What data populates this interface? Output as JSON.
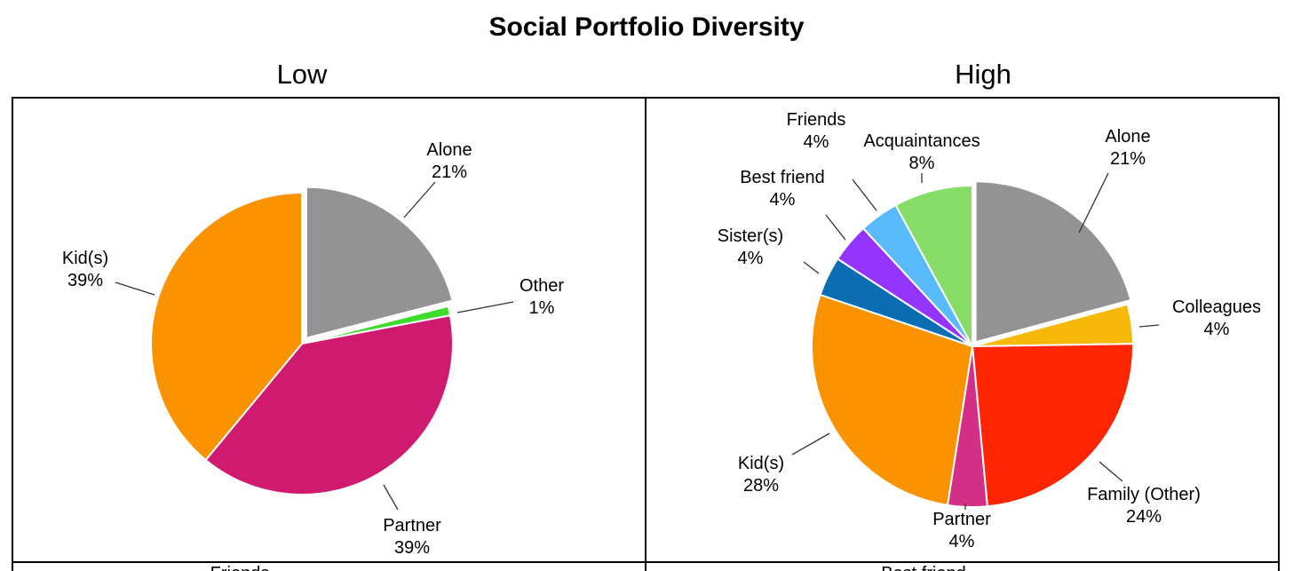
{
  "title": "Social Portfolio Diversity",
  "chart_data": [
    {
      "type": "pie",
      "title": "Low",
      "colors": {
        "Alone": "#939393",
        "Other": "#3ddb2a",
        "Partner": "#d01a70",
        "Kid(s)": "#fb9200"
      },
      "slices": [
        {
          "label": "Alone",
          "value": 21,
          "value_label": "21%",
          "exploded": true
        },
        {
          "label": "Other",
          "value": 1,
          "value_label": "1%",
          "exploded": false
        },
        {
          "label": "Partner",
          "value": 39,
          "value_label": "39%",
          "exploded": false
        },
        {
          "label": "Kid(s)",
          "value": 39,
          "value_label": "39%",
          "exploded": false
        }
      ],
      "below_panel_text": "Friends"
    },
    {
      "type": "pie",
      "title": "High",
      "colors": {
        "Alone": "#939393",
        "Colleagues": "#f6b90a",
        "Family (Other)": "#ff2500",
        "Partner": "#d32f87",
        "Kid(s)": "#fb9200",
        "Sister(s)": "#0b6eb3",
        "Best friend": "#9335ff",
        "Friends": "#59bafc",
        "Acquaintances": "#85dd67"
      },
      "slices": [
        {
          "label": "Alone",
          "value": 21,
          "value_label": "21%",
          "exploded": true
        },
        {
          "label": "Colleagues",
          "value": 4,
          "value_label": "4%",
          "exploded": false
        },
        {
          "label": "Family (Other)",
          "value": 24,
          "value_label": "24%",
          "exploded": false
        },
        {
          "label": "Partner",
          "value": 4,
          "value_label": "4%",
          "exploded": false
        },
        {
          "label": "Kid(s)",
          "value": 28,
          "value_label": "28%",
          "exploded": false
        },
        {
          "label": "Sister(s)",
          "value": 4,
          "value_label": "4%",
          "exploded": false
        },
        {
          "label": "Best friend",
          "value": 4,
          "value_label": "4%",
          "exploded": false
        },
        {
          "label": "Friends",
          "value": 4,
          "value_label": "4%",
          "exploded": false
        },
        {
          "label": "Acquaintances",
          "value": 8,
          "value_label": "8%",
          "exploded": false
        }
      ],
      "below_panel_text": "Best friend"
    }
  ]
}
